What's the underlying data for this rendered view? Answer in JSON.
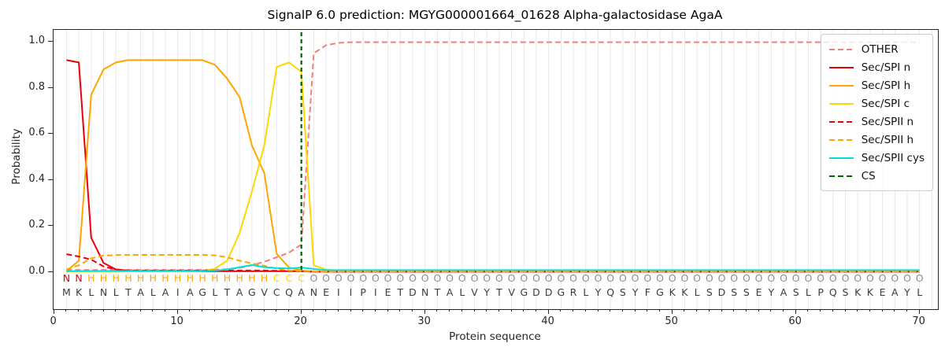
{
  "title": "SignalP 6.0 prediction: MGYG000001664_01628 Alpha-galactosidase AgaA",
  "chart_data": {
    "type": "line",
    "xlabel": "Protein sequence",
    "ylabel": "Probability",
    "x_ticks": [
      0,
      10,
      20,
      30,
      40,
      50,
      60,
      70
    ],
    "y_ticks": [
      "0.0",
      "0.2",
      "0.4",
      "0.6",
      "0.8",
      "1.0"
    ],
    "xlim": [
      0,
      71.5
    ],
    "ylim": [
      0,
      1.05
    ],
    "grid": "vertical gridlines at every residue position",
    "legend_position": "upper right",
    "x_positions_note": "x value = residue index 1..70",
    "series": [
      {
        "name": "OTHER",
        "color": "#f08080",
        "style": "dashed",
        "values": [
          0.01,
          0.01,
          0.01,
          0.01,
          0.01,
          0.01,
          0.01,
          0.01,
          0.01,
          0.01,
          0.01,
          0.01,
          0.011,
          0.013,
          0.018,
          0.03,
          0.045,
          0.065,
          0.085,
          0.12,
          0.95,
          0.985,
          0.995,
          0.998,
          0.998,
          0.998,
          0.998,
          0.998,
          0.998,
          0.998,
          0.998,
          0.998,
          0.998,
          0.998,
          0.998,
          0.998,
          0.998,
          0.998,
          0.998,
          0.998,
          0.998,
          0.998,
          0.998,
          0.998,
          0.998,
          0.998,
          0.998,
          0.998,
          0.998,
          0.998,
          0.998,
          0.998,
          0.998,
          0.998,
          0.998,
          0.998,
          0.998,
          0.998,
          0.998,
          0.998,
          0.998,
          0.998,
          0.998,
          0.998,
          0.998,
          0.998,
          0.998,
          0.998,
          0.998,
          0.998
        ]
      },
      {
        "name": "Sec/SPI n",
        "color": "#e8000b",
        "style": "solid",
        "values": [
          0.92,
          0.91,
          0.15,
          0.04,
          0.012,
          0.006,
          0.004,
          0.004,
          0.004,
          0.004,
          0.004,
          0.004,
          0.004,
          0.004,
          0.004,
          0.004,
          0.004,
          0.004,
          0.004,
          0.004,
          0.002,
          0.002,
          0.002,
          0.002,
          0.002,
          0.002,
          0.002,
          0.002,
          0.002,
          0.002,
          0.002,
          0.002,
          0.002,
          0.002,
          0.002,
          0.002,
          0.002,
          0.002,
          0.002,
          0.002,
          0.002,
          0.002,
          0.002,
          0.002,
          0.002,
          0.002,
          0.002,
          0.002,
          0.002,
          0.002,
          0.002,
          0.002,
          0.002,
          0.002,
          0.002,
          0.002,
          0.002,
          0.002,
          0.002,
          0.002,
          0.002,
          0.002,
          0.002,
          0.002,
          0.002,
          0.002,
          0.002,
          0.002,
          0.002,
          0.002
        ]
      },
      {
        "name": "Sec/SPI h",
        "color": "#ffa500",
        "style": "solid",
        "values": [
          0.005,
          0.05,
          0.77,
          0.88,
          0.91,
          0.92,
          0.92,
          0.92,
          0.92,
          0.92,
          0.92,
          0.92,
          0.9,
          0.84,
          0.76,
          0.55,
          0.43,
          0.08,
          0.02,
          0.008,
          0.003,
          0.003,
          0.003,
          0.003,
          0.003,
          0.003,
          0.003,
          0.003,
          0.003,
          0.003,
          0.003,
          0.003,
          0.003,
          0.003,
          0.003,
          0.003,
          0.003,
          0.003,
          0.003,
          0.003,
          0.003,
          0.003,
          0.003,
          0.003,
          0.003,
          0.003,
          0.003,
          0.003,
          0.003,
          0.003,
          0.003,
          0.003,
          0.003,
          0.003,
          0.003,
          0.003,
          0.003,
          0.003,
          0.003,
          0.003,
          0.003,
          0.003,
          0.003,
          0.003,
          0.003,
          0.003,
          0.003,
          0.003,
          0.003,
          0.003
        ]
      },
      {
        "name": "Sec/SPI c",
        "color": "#ffd700",
        "style": "solid",
        "values": [
          0.002,
          0.002,
          0.002,
          0.002,
          0.002,
          0.003,
          0.003,
          0.003,
          0.003,
          0.003,
          0.003,
          0.005,
          0.015,
          0.05,
          0.17,
          0.35,
          0.55,
          0.89,
          0.91,
          0.87,
          0.03,
          0.012,
          0.006,
          0.006,
          0.006,
          0.006,
          0.006,
          0.006,
          0.006,
          0.006,
          0.006,
          0.006,
          0.006,
          0.006,
          0.006,
          0.006,
          0.006,
          0.006,
          0.006,
          0.006,
          0.006,
          0.006,
          0.006,
          0.006,
          0.006,
          0.006,
          0.006,
          0.006,
          0.006,
          0.006,
          0.006,
          0.006,
          0.006,
          0.006,
          0.006,
          0.006,
          0.006,
          0.006,
          0.006,
          0.006,
          0.006,
          0.006,
          0.006,
          0.006,
          0.006,
          0.006,
          0.006,
          0.006,
          0.006,
          0.006
        ]
      },
      {
        "name": "Sec/SPII n",
        "color": "#e8000b",
        "style": "dashed",
        "values": [
          0.078,
          0.068,
          0.055,
          0.025,
          0.012,
          0.008,
          0.007,
          0.007,
          0.007,
          0.007,
          0.007,
          0.007,
          0.007,
          0.007,
          0.007,
          0.007,
          0.007,
          0.006,
          0.005,
          0.004,
          0.002,
          0.002,
          0.002,
          0.002,
          0.002,
          0.002,
          0.002,
          0.002,
          0.002,
          0.002,
          0.002,
          0.002,
          0.002,
          0.002,
          0.002,
          0.002,
          0.002,
          0.002,
          0.002,
          0.002,
          0.002,
          0.002,
          0.002,
          0.002,
          0.002,
          0.002,
          0.002,
          0.002,
          0.002,
          0.002,
          0.002,
          0.002,
          0.002,
          0.002,
          0.002,
          0.002,
          0.002,
          0.002,
          0.002,
          0.002,
          0.002,
          0.002,
          0.002,
          0.002,
          0.002,
          0.002,
          0.002,
          0.002,
          0.002,
          0.002
        ]
      },
      {
        "name": "Sec/SPII h",
        "color": "#ffa500",
        "style": "dashed",
        "values": [
          0.012,
          0.03,
          0.06,
          0.072,
          0.074,
          0.075,
          0.075,
          0.075,
          0.075,
          0.075,
          0.075,
          0.075,
          0.073,
          0.065,
          0.05,
          0.038,
          0.028,
          0.015,
          0.008,
          0.005,
          0.003,
          0.003,
          0.003,
          0.003,
          0.003,
          0.003,
          0.003,
          0.003,
          0.003,
          0.003,
          0.003,
          0.003,
          0.003,
          0.003,
          0.003,
          0.003,
          0.003,
          0.003,
          0.003,
          0.003,
          0.003,
          0.003,
          0.003,
          0.003,
          0.003,
          0.003,
          0.003,
          0.003,
          0.003,
          0.003,
          0.003,
          0.003,
          0.003,
          0.003,
          0.003,
          0.003,
          0.003,
          0.003,
          0.003,
          0.003,
          0.003,
          0.003,
          0.003,
          0.003,
          0.003,
          0.003,
          0.003,
          0.003,
          0.003,
          0.003
        ]
      },
      {
        "name": "Sec/SPII cys",
        "color": "#00e0e0",
        "style": "solid",
        "values": [
          0.004,
          0.005,
          0.005,
          0.005,
          0.005,
          0.005,
          0.005,
          0.005,
          0.005,
          0.005,
          0.005,
          0.005,
          0.007,
          0.012,
          0.022,
          0.031,
          0.022,
          0.018,
          0.016,
          0.02,
          0.014,
          0.009,
          0.009,
          0.009,
          0.009,
          0.009,
          0.009,
          0.009,
          0.009,
          0.009,
          0.009,
          0.009,
          0.009,
          0.009,
          0.009,
          0.009,
          0.009,
          0.009,
          0.009,
          0.009,
          0.009,
          0.009,
          0.009,
          0.009,
          0.009,
          0.009,
          0.009,
          0.009,
          0.009,
          0.009,
          0.009,
          0.009,
          0.009,
          0.009,
          0.009,
          0.009,
          0.009,
          0.009,
          0.009,
          0.009,
          0.009,
          0.009,
          0.009,
          0.009,
          0.009,
          0.009,
          0.009,
          0.009,
          0.009,
          0.009
        ]
      }
    ],
    "cs_marker": {
      "name": "CS",
      "position": 20,
      "color": "#006400",
      "style": "dashed"
    },
    "sequence": "MKLNLTALAIAGLTAGVCQANEIIPIETDNTALVYTVGDDGRLYQSYFGKKLSDSSEYASLPQSKKEAYL",
    "region_labels": "NNHHHHHHHHHHHHHHHCCCOOOOOOOOOOOOOOOOOOOOOOOOOOOOOOOOOOOOOOOOOOOOOOOOOO",
    "region_colors": {
      "N": "#e8000b",
      "H": "#ffa500",
      "C": "#ffd700",
      "O": "#8c8c8c"
    },
    "sequence_color": "#3c3c3c",
    "grid_color": "#e8e8e8"
  }
}
